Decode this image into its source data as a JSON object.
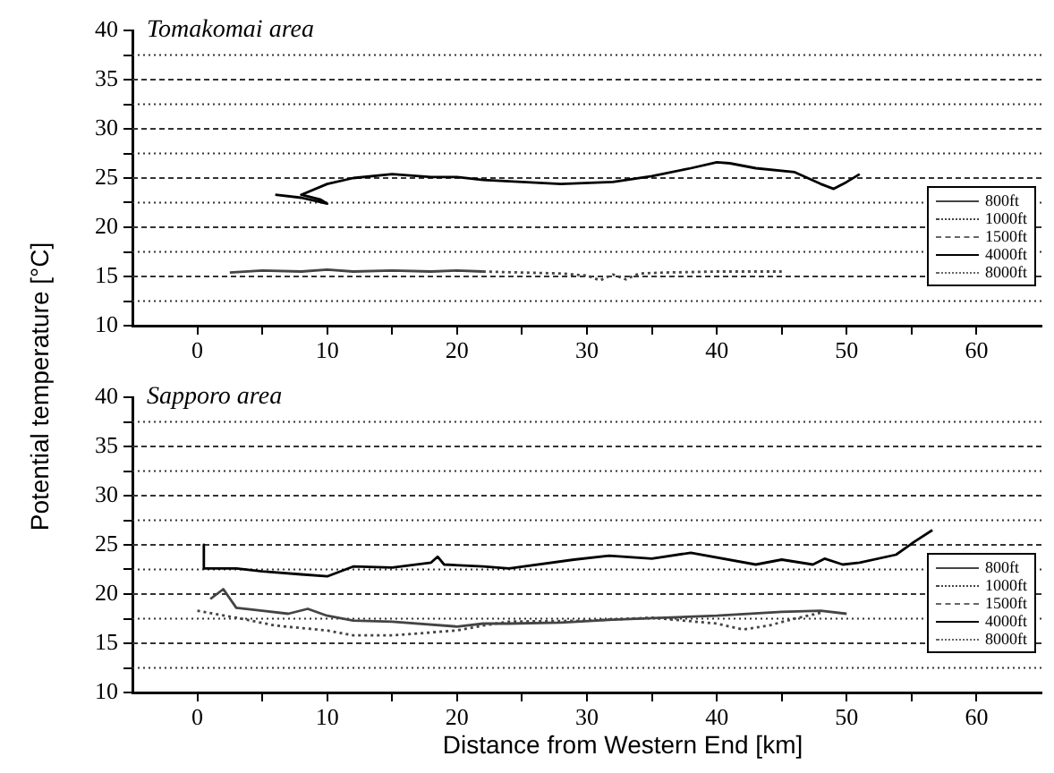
{
  "chart_data": [
    {
      "type": "line",
      "title": "Tomakomai area",
      "ylabel": "Potential temperature  [°C]",
      "xlim": [
        -5,
        65
      ],
      "ylim": [
        10,
        40
      ],
      "xticks": [
        0,
        {
          "value": 5,
          "label": null
        },
        10,
        {
          "value": 15,
          "label": null
        },
        20,
        {
          "value": 25,
          "label": null
        },
        30,
        {
          "value": 35,
          "label": null
        },
        40,
        {
          "value": 45,
          "label": null
        },
        50,
        {
          "value": 55,
          "label": null
        },
        60
      ],
      "yticks": [
        10,
        {
          "value": 12.5,
          "label": null
        },
        15,
        {
          "value": 17.5,
          "label": null
        },
        20,
        {
          "value": 22.5,
          "label": null
        },
        25,
        {
          "value": 27.5,
          "label": null
        },
        30,
        {
          "value": 32.5,
          "label": null
        },
        35,
        {
          "value": 37.5,
          "label": null
        },
        40
      ],
      "grid": "y",
      "legend": "right",
      "series": [
        {
          "name": "800ft",
          "color": "#444444",
          "line_style": "solid",
          "x": [
            2.5,
            5,
            8,
            10,
            12,
            15,
            18,
            20,
            22
          ],
          "values": [
            15.4,
            15.6,
            15.5,
            15.7,
            15.5,
            15.6,
            15.5,
            15.6,
            15.5
          ]
        },
        {
          "name": "1000ft",
          "color": "#444444",
          "line_style": "dotted",
          "x": [
            22,
            25,
            28,
            30,
            31,
            32,
            33,
            34,
            36,
            40,
            45
          ],
          "values": [
            15.5,
            15.4,
            15.3,
            15.1,
            14.6,
            15.2,
            14.7,
            15.3,
            15.4,
            15.5,
            15.5
          ]
        },
        {
          "name": "1500ft",
          "color": "#666666",
          "line_style": "dashed"
        },
        {
          "name": "4000ft",
          "color": "#000000",
          "line_style": "solid",
          "x": [
            6,
            8,
            10,
            9.5,
            8,
            10,
            12,
            15,
            18,
            20,
            22,
            25,
            28,
            32,
            35,
            38,
            40,
            41,
            43,
            46,
            48,
            49,
            50,
            51
          ],
          "values": [
            23.3,
            23,
            22.4,
            22.8,
            23.3,
            24.4,
            25,
            25.4,
            25.1,
            25.1,
            24.8,
            24.6,
            24.4,
            24.6,
            25.2,
            26,
            26.6,
            26.5,
            26,
            25.6,
            24.4,
            23.9,
            24.6,
            25.4
          ]
        },
        {
          "name": "8000ft",
          "color": "#666666",
          "line_style": "dotted"
        }
      ]
    },
    {
      "type": "line",
      "title": "Sapporo area",
      "xlabel": "Distance from Western End [km]",
      "xlim": [
        -5,
        65
      ],
      "ylim": [
        10,
        40
      ],
      "xticks": [
        0,
        {
          "value": 5,
          "label": null
        },
        10,
        {
          "value": 15,
          "label": null
        },
        20,
        {
          "value": 25,
          "label": null
        },
        30,
        {
          "value": 35,
          "label": null
        },
        40,
        {
          "value": 45,
          "label": null
        },
        50,
        {
          "value": 55,
          "label": null
        },
        60
      ],
      "yticks": [
        10,
        {
          "value": 12.5,
          "label": null
        },
        15,
        {
          "value": 17.5,
          "label": null
        },
        20,
        {
          "value": 22.5,
          "label": null
        },
        25,
        {
          "value": 27.5,
          "label": null
        },
        30,
        {
          "value": 32.5,
          "label": null
        },
        35,
        {
          "value": 37.5,
          "label": null
        },
        40
      ],
      "grid": "y",
      "legend": "right",
      "series": [
        {
          "name": "800ft",
          "color": "#444444",
          "line_style": "solid",
          "x": [
            1,
            2,
            3,
            5,
            7,
            8.5,
            10,
            12,
            15,
            20,
            22,
            24,
            28,
            32,
            36,
            40,
            45,
            48,
            50
          ],
          "values": [
            19.5,
            20.5,
            18.6,
            18.3,
            18,
            18.5,
            17.8,
            17.3,
            17.2,
            16.7,
            17,
            17,
            17.1,
            17.4,
            17.6,
            17.8,
            18.2,
            18.3,
            18
          ]
        },
        {
          "name": "1000ft",
          "color": "#444444",
          "line_style": "dotted",
          "x": [
            0,
            3,
            6,
            10,
            12,
            15,
            20,
            22,
            24,
            30,
            35,
            40,
            42,
            44,
            46,
            48
          ],
          "values": [
            18.3,
            17.6,
            16.8,
            16.3,
            15.8,
            15.8,
            16.3,
            16.8,
            17.2,
            17.3,
            17.6,
            17,
            16.4,
            16.8,
            17.5,
            18.1
          ]
        },
        {
          "name": "1500ft",
          "color": "#666666",
          "line_style": "dashed"
        },
        {
          "name": "4000ft",
          "color": "#000000",
          "line_style": "solid",
          "x": [
            0.5,
            0.5,
            3,
            5,
            8,
            10,
            12,
            15,
            18,
            18.5,
            19,
            22,
            24,
            29,
            31.7,
            35,
            38,
            43,
            45,
            47.4,
            48.3,
            49.7,
            51,
            53.8,
            55.2,
            56.6
          ],
          "values": [
            25,
            22.6,
            22.6,
            22.3,
            22,
            21.8,
            22.8,
            22.7,
            23.2,
            23.8,
            23,
            22.8,
            22.6,
            23.5,
            23.9,
            23.6,
            24.2,
            23,
            23.5,
            23,
            23.6,
            23,
            23.2,
            24,
            25.3,
            26.5
          ]
        },
        {
          "name": "8000ft",
          "color": "#666666",
          "line_style": "dotted"
        }
      ]
    }
  ]
}
